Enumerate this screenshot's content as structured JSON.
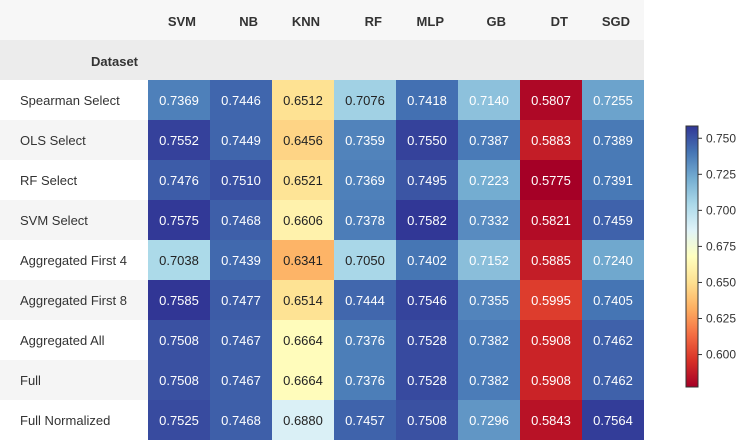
{
  "chart_data": {
    "type": "heatmap",
    "index_label": "Dataset",
    "columns": [
      "SVM",
      "NB",
      "KNN",
      "RF",
      "MLP",
      "GB",
      "DT",
      "SGD"
    ],
    "rows": [
      {
        "name": "Spearman Select",
        "values": [
          0.7369,
          0.7446,
          0.6512,
          0.7076,
          0.7418,
          0.714,
          0.5807,
          0.7255
        ]
      },
      {
        "name": "OLS Select",
        "values": [
          0.7552,
          0.7449,
          0.6456,
          0.7359,
          0.755,
          0.7387,
          0.5883,
          0.7389
        ]
      },
      {
        "name": "RF Select",
        "values": [
          0.7476,
          0.751,
          0.6521,
          0.7369,
          0.7495,
          0.7223,
          0.5775,
          0.7391
        ]
      },
      {
        "name": "SVM Select",
        "values": [
          0.7575,
          0.7468,
          0.6606,
          0.7378,
          0.7582,
          0.7332,
          0.5821,
          0.7459
        ]
      },
      {
        "name": "Aggregated First 4",
        "values": [
          0.7038,
          0.7439,
          0.6341,
          0.705,
          0.7402,
          0.7152,
          0.5885,
          0.724
        ]
      },
      {
        "name": "Aggregated First 8",
        "values": [
          0.7585,
          0.7477,
          0.6514,
          0.7444,
          0.7546,
          0.7355,
          0.5995,
          0.7405
        ]
      },
      {
        "name": "Aggregated All",
        "values": [
          0.7508,
          0.7467,
          0.6664,
          0.7376,
          0.7528,
          0.7382,
          0.5908,
          0.7462
        ]
      },
      {
        "name": "Full",
        "values": [
          0.7508,
          0.7467,
          0.6664,
          0.7376,
          0.7528,
          0.7382,
          0.5908,
          0.7462
        ]
      },
      {
        "name": "Full Normalized",
        "values": [
          0.7525,
          0.7468,
          0.688,
          0.7457,
          0.7508,
          0.7296,
          0.5843,
          0.7564
        ]
      }
    ],
    "colormap": "RdYlBu",
    "colorbar": {
      "range": [
        0.5775,
        0.7585
      ],
      "ticks": [
        "0.600",
        "0.625",
        "0.650",
        "0.675",
        "0.700",
        "0.725",
        "0.750"
      ]
    }
  }
}
